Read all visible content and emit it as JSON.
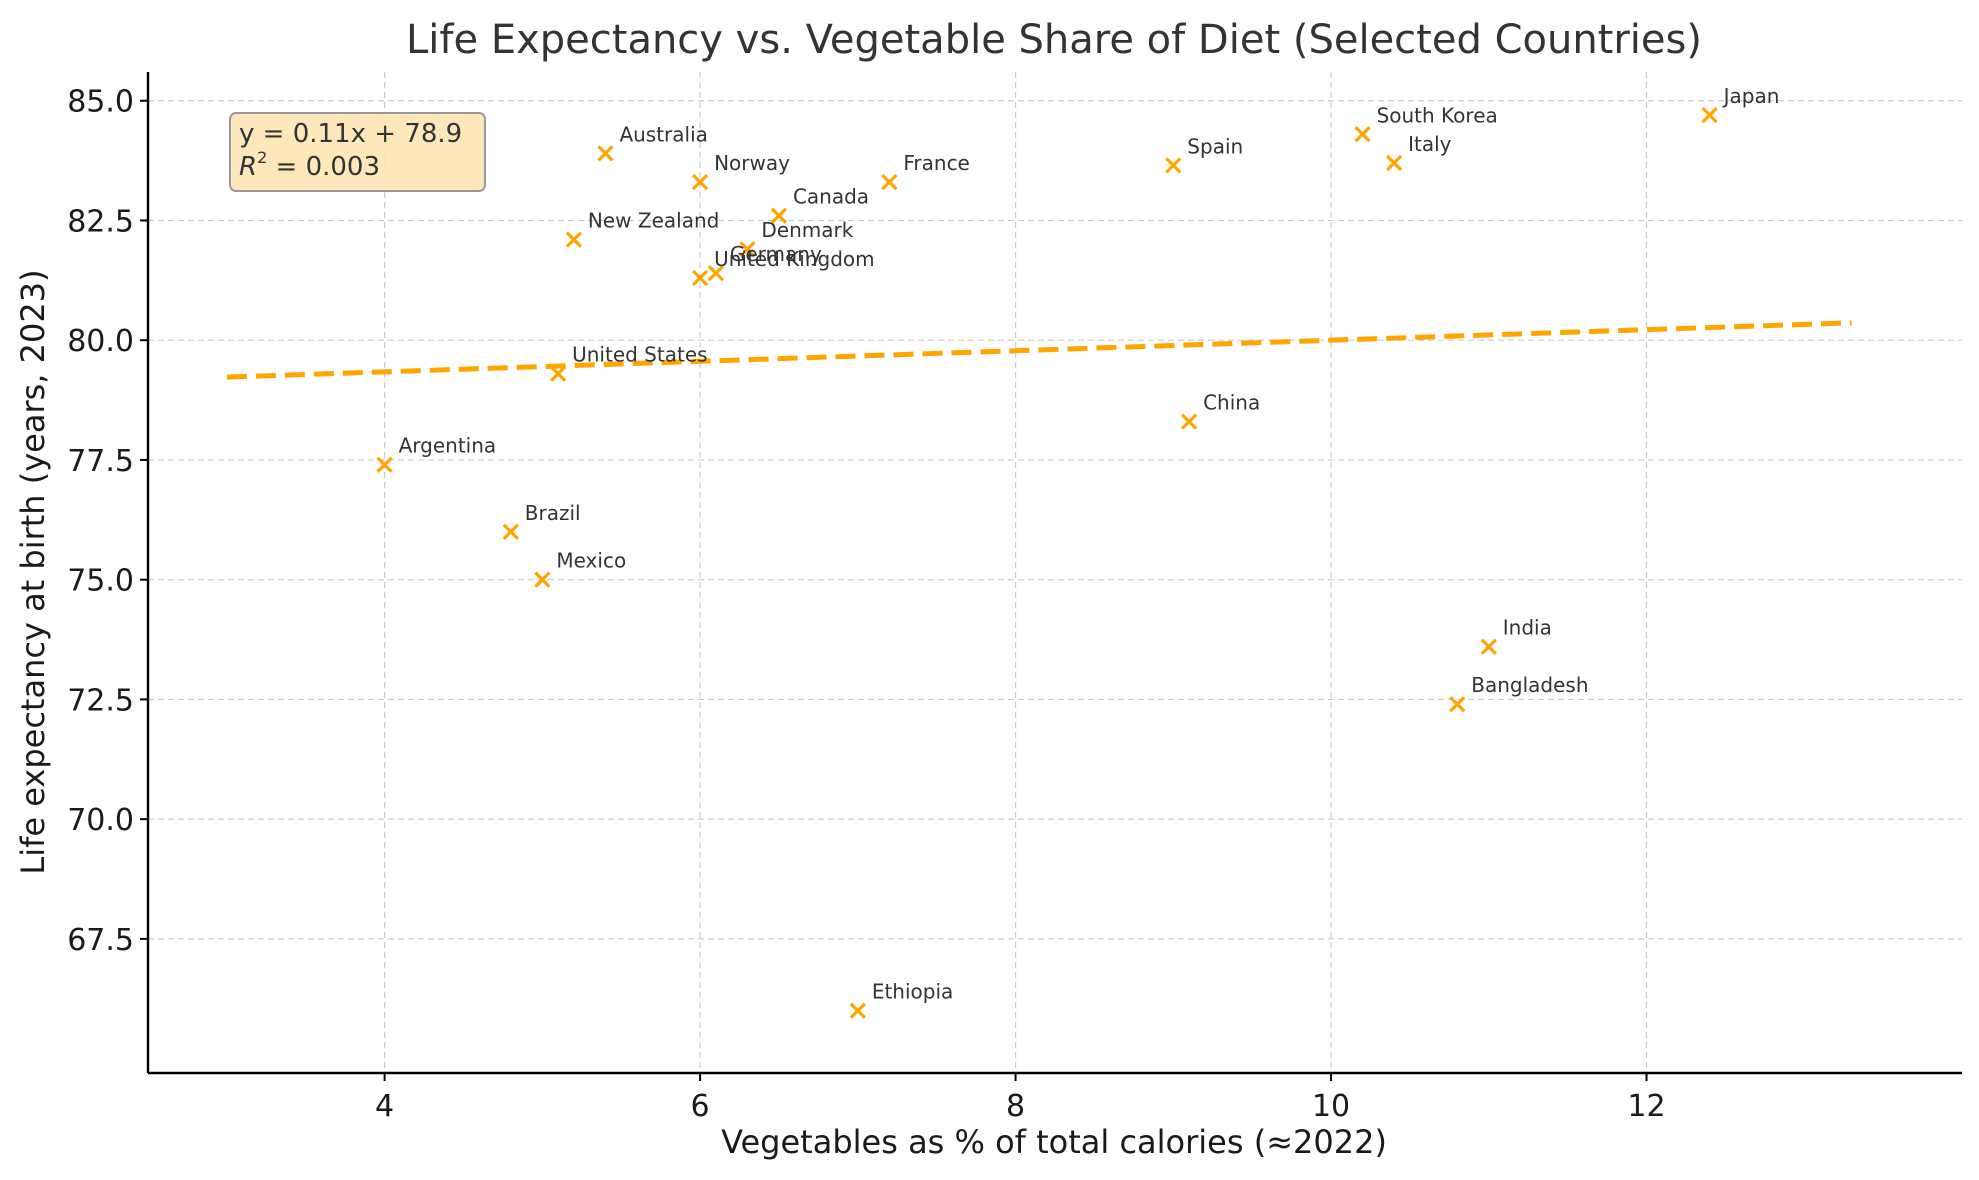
{
  "chart_data": {
    "type": "scatter",
    "title": "Life Expectancy vs. Vegetable Share of Diet (Selected Countries)",
    "xlabel": "Vegetables as % of total calories (≈2022)",
    "ylabel": "Life expectancy at birth (years, 2023)",
    "xlim": [
      2.5,
      14.0
    ],
    "ylim": [
      64.7,
      85.6
    ],
    "xticks": [
      4,
      6,
      8,
      10,
      12
    ],
    "xtick_labels": [
      "4",
      "6",
      "8",
      "10",
      "12"
    ],
    "yticks": [
      67.5,
      70.0,
      72.5,
      75.0,
      77.5,
      80.0,
      82.5,
      85.0
    ],
    "ytick_labels": [
      "67.5",
      "70.0",
      "72.5",
      "75.0",
      "77.5",
      "80.0",
      "82.5",
      "85.0"
    ],
    "grid": true,
    "marker": "x",
    "color": "#FFA500",
    "points": [
      {
        "label": "Japan",
        "x": 12.4,
        "y": 84.7
      },
      {
        "label": "South Korea",
        "x": 10.2,
        "y": 84.3
      },
      {
        "label": "Italy",
        "x": 10.4,
        "y": 83.7
      },
      {
        "label": "Spain",
        "x": 9.0,
        "y": 83.65
      },
      {
        "label": "France",
        "x": 7.2,
        "y": 83.3
      },
      {
        "label": "Australia",
        "x": 5.4,
        "y": 83.9
      },
      {
        "label": "Norway",
        "x": 6.0,
        "y": 83.3
      },
      {
        "label": "Canada",
        "x": 6.5,
        "y": 82.6
      },
      {
        "label": "New Zealand",
        "x": 5.2,
        "y": 82.1
      },
      {
        "label": "Denmark",
        "x": 6.3,
        "y": 81.9
      },
      {
        "label": "Germany",
        "x": 6.1,
        "y": 81.4
      },
      {
        "label": "United Kingdom",
        "x": 6.0,
        "y": 81.3
      },
      {
        "label": "United States",
        "x": 5.1,
        "y": 79.3
      },
      {
        "label": "China",
        "x": 9.1,
        "y": 78.3
      },
      {
        "label": "Argentina",
        "x": 4.0,
        "y": 77.4
      },
      {
        "label": "Brazil",
        "x": 4.8,
        "y": 76.0
      },
      {
        "label": "Mexico",
        "x": 5.0,
        "y": 75.0
      },
      {
        "label": "India",
        "x": 11.0,
        "y": 73.6
      },
      {
        "label": "Bangladesh",
        "x": 10.8,
        "y": 72.4
      },
      {
        "label": "Ethiopia",
        "x": 7.0,
        "y": 66.0
      }
    ],
    "trendline": {
      "style": "dashed",
      "color": "#FFA500",
      "slope": 0.11,
      "intercept": 78.9,
      "x_range": [
        3.0,
        13.3
      ]
    },
    "annotation": {
      "line1": "y = 0.11x + 78.9",
      "line2_prefix": "R",
      "line2_sup": "2",
      "line2_suffix": " = 0.003",
      "background": "#FFE4B5"
    }
  }
}
